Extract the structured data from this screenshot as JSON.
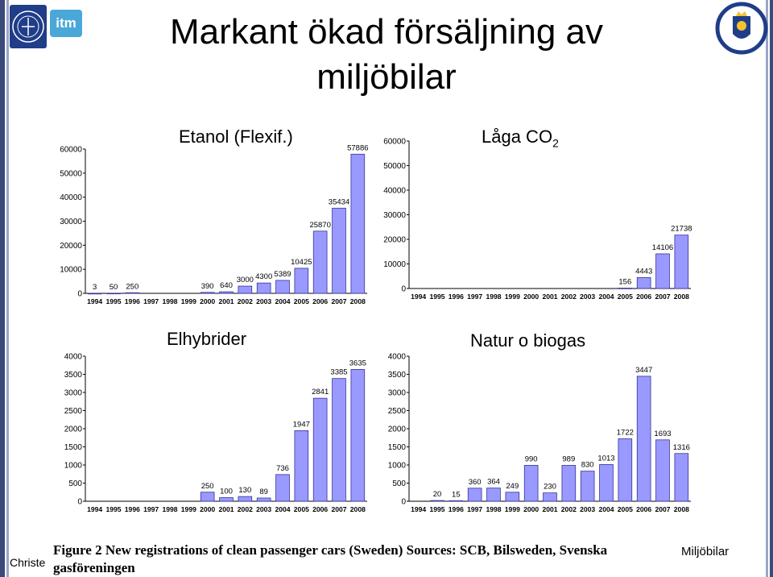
{
  "page": {
    "title_line1": "Markant ökad försäljning av",
    "title_line2": "miljöbilar",
    "logo_itm": "itm",
    "caption_line1": "Figure 2  New registrations of clean passenger cars (Sweden) Sources: SCB, Bilsweden, Svenska",
    "caption_line2": "gasföreningen",
    "footer_left": "Christe",
    "footer_right": "Miljöbilar",
    "bar_color": "#9999ff",
    "bar_stroke": "#333399"
  },
  "chart_data": [
    {
      "type": "bar",
      "title": "Etanol (Flexif.)",
      "categories": [
        "1994",
        "1995",
        "1996",
        "1997",
        "1998",
        "1999",
        "2000",
        "2001",
        "2002",
        "2003",
        "2004",
        "2005",
        "2006",
        "2007",
        "2008"
      ],
      "values": [
        3,
        50,
        250,
        0,
        0,
        0,
        390,
        640,
        3000,
        4300,
        5389,
        10425,
        25870,
        35434,
        57886
      ],
      "labels": [
        "3",
        "50",
        "250",
        "",
        "",
        "",
        "390",
        "640",
        "3000",
        "4300",
        "5389",
        "10425",
        "25870",
        "35434",
        "57886"
      ],
      "yticks": [
        "0",
        "10000",
        "20000",
        "30000",
        "40000",
        "50000",
        "60000"
      ],
      "ylim": [
        0,
        60000
      ]
    },
    {
      "type": "bar",
      "title": "Låga CO",
      "title_sub": "2",
      "categories": [
        "1994",
        "1995",
        "1996",
        "1997",
        "1998",
        "1999",
        "2000",
        "2001",
        "2002",
        "2003",
        "2004",
        "2005",
        "2006",
        "2007",
        "2008"
      ],
      "values": [
        0,
        0,
        0,
        0,
        0,
        0,
        0,
        0,
        0,
        0,
        0,
        156,
        4443,
        14106,
        21738
      ],
      "labels": [
        "",
        "",
        "",
        "",
        "",
        "",
        "",
        "",
        "",
        "",
        "",
        "156",
        "4443",
        "14106",
        "21738"
      ],
      "yticks": [
        "0",
        "10000",
        "20000",
        "30000",
        "40000",
        "50000",
        "60000"
      ],
      "ylim": [
        0,
        60000
      ]
    },
    {
      "type": "bar",
      "title": "Elhybrider",
      "categories": [
        "1994",
        "1995",
        "1996",
        "1997",
        "1998",
        "1999",
        "2000",
        "2001",
        "2002",
        "2003",
        "2004",
        "2005",
        "2006",
        "2007",
        "2008"
      ],
      "values": [
        0,
        0,
        0,
        0,
        0,
        0,
        250,
        100,
        130,
        89,
        736,
        1947,
        2841,
        3385,
        3635
      ],
      "labels": [
        "",
        "",
        "",
        "",
        "",
        "",
        "250",
        "100",
        "130",
        "89",
        "736",
        "1947",
        "2841",
        "3385",
        "3635"
      ],
      "yticks": [
        "0",
        "500",
        "1000",
        "1500",
        "2000",
        "2500",
        "3000",
        "3500",
        "4000"
      ],
      "ylim": [
        0,
        4000
      ]
    },
    {
      "type": "bar",
      "title": "Natur o biogas",
      "categories": [
        "1994",
        "1995",
        "1996",
        "1997",
        "1998",
        "1999",
        "2000",
        "2001",
        "2002",
        "2003",
        "2004",
        "2005",
        "2006",
        "2007",
        "2008"
      ],
      "values": [
        0,
        20,
        15,
        360,
        364,
        249,
        990,
        230,
        989,
        830,
        1013,
        1722,
        3447,
        1693,
        1316
      ],
      "labels": [
        "",
        "20",
        "15",
        "360",
        "364",
        "249",
        "990",
        "230",
        "989",
        "830",
        "1013",
        "1722",
        "3447",
        "1693",
        "1316"
      ],
      "yticks": [
        "0",
        "500",
        "1000",
        "1500",
        "2000",
        "2500",
        "3000",
        "3500",
        "4000"
      ],
      "ylim": [
        0,
        4000
      ]
    }
  ]
}
